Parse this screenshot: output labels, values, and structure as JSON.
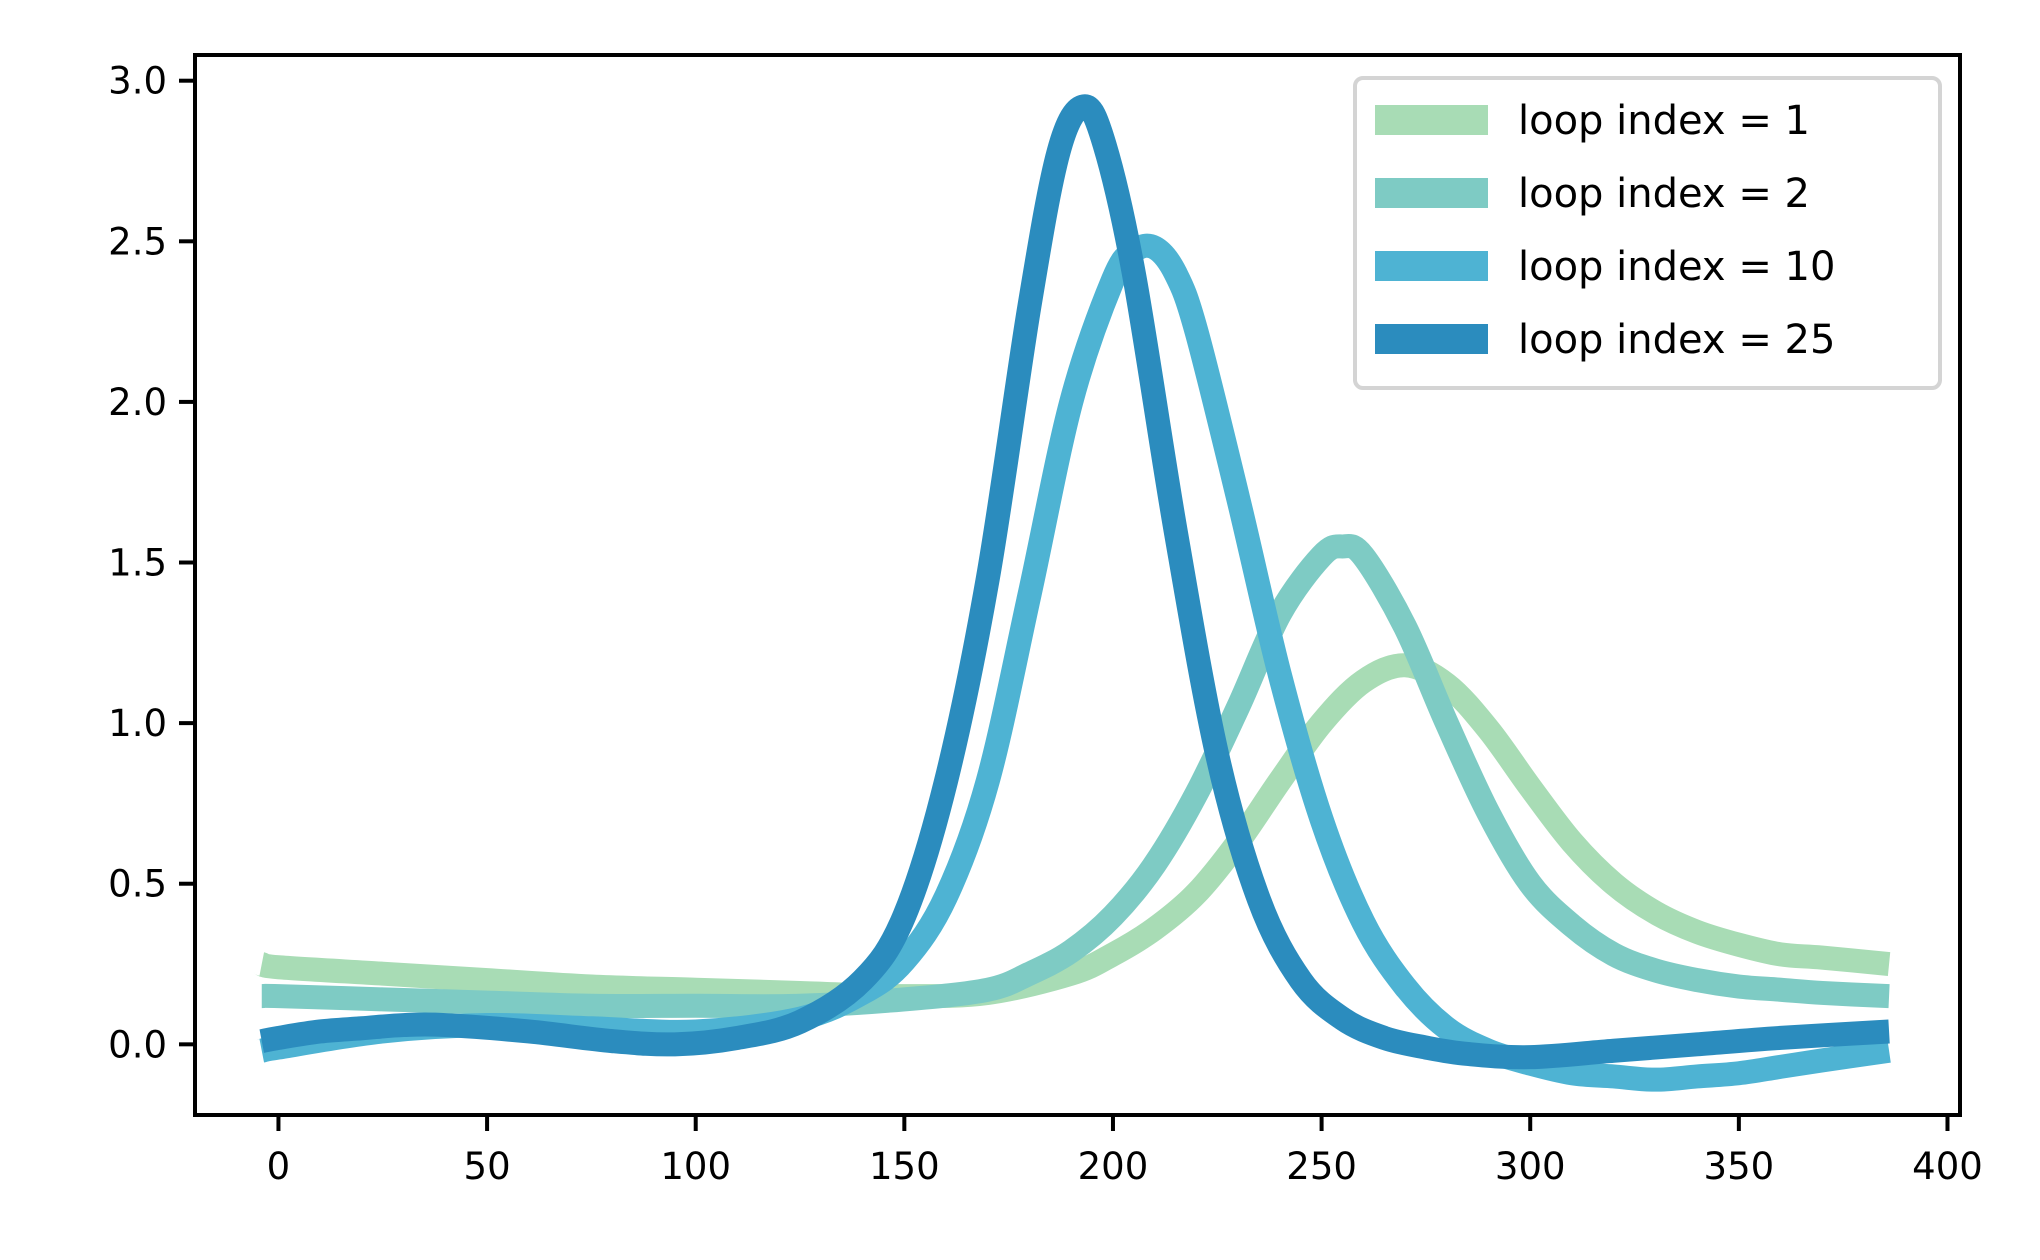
{
  "chart_data": {
    "type": "line",
    "title": "",
    "xlabel": "",
    "ylabel": "",
    "xlim": [
      -20,
      403
    ],
    "ylim": [
      -0.22,
      3.08
    ],
    "xticks": [
      0,
      50,
      100,
      150,
      200,
      250,
      300,
      350,
      400
    ],
    "xtick_labels": [
      "0",
      "50",
      "100",
      "150",
      "200",
      "250",
      "300",
      "350",
      "400"
    ],
    "yticks": [
      0.0,
      0.5,
      1.0,
      1.5,
      2.0,
      2.5,
      3.0
    ],
    "ytick_labels": [
      "0.0",
      "0.5",
      "1.0",
      "1.5",
      "2.0",
      "2.5",
      "3.0"
    ],
    "grid": false,
    "legend_position": "upper-right",
    "series": [
      {
        "name": "loop index = 1",
        "color": "#a8dcb5",
        "x": [
          -4,
          0,
          25,
          50,
          75,
          100,
          125,
          150,
          170,
          190,
          200,
          210,
          220,
          230,
          240,
          250,
          260,
          270,
          280,
          290,
          300,
          310,
          320,
          330,
          340,
          350,
          360,
          370,
          386
        ],
        "y": [
          0.25,
          0.24,
          0.22,
          0.2,
          0.18,
          0.17,
          0.16,
          0.15,
          0.16,
          0.22,
          0.28,
          0.36,
          0.47,
          0.63,
          0.82,
          1.0,
          1.13,
          1.18,
          1.12,
          0.98,
          0.8,
          0.63,
          0.5,
          0.41,
          0.35,
          0.31,
          0.28,
          0.27,
          0.25
        ]
      },
      {
        "name": "loop index = 2",
        "color": "#7ecbc4",
        "x": [
          -4,
          0,
          25,
          50,
          75,
          100,
          125,
          150,
          170,
          180,
          190,
          200,
          210,
          220,
          230,
          240,
          250,
          255,
          260,
          270,
          280,
          290,
          300,
          310,
          320,
          330,
          340,
          350,
          360,
          370,
          386
        ],
        "y": [
          0.15,
          0.15,
          0.14,
          0.13,
          0.12,
          0.12,
          0.12,
          0.14,
          0.17,
          0.22,
          0.29,
          0.4,
          0.56,
          0.78,
          1.05,
          1.34,
          1.52,
          1.55,
          1.52,
          1.3,
          1.0,
          0.72,
          0.5,
          0.37,
          0.28,
          0.23,
          0.2,
          0.18,
          0.17,
          0.16,
          0.15
        ]
      },
      {
        "name": "loop index = 10",
        "color": "#4eb3d3",
        "x": [
          -4,
          0,
          25,
          50,
          75,
          100,
          125,
          140,
          150,
          160,
          170,
          180,
          190,
          200,
          205,
          210,
          215,
          220,
          230,
          240,
          250,
          260,
          270,
          280,
          290,
          300,
          310,
          320,
          330,
          340,
          350,
          360,
          370,
          386
        ],
        "y": [
          -0.02,
          -0.01,
          0.04,
          0.06,
          0.05,
          0.04,
          0.08,
          0.16,
          0.26,
          0.46,
          0.82,
          1.4,
          2.0,
          2.38,
          2.47,
          2.48,
          2.4,
          2.22,
          1.7,
          1.15,
          0.7,
          0.38,
          0.18,
          0.05,
          -0.02,
          -0.06,
          -0.09,
          -0.1,
          -0.11,
          -0.1,
          -0.09,
          -0.07,
          -0.05,
          -0.02
        ]
      },
      {
        "name": "loop index = 25",
        "color": "#2b8cbe",
        "x": [
          -4,
          0,
          10,
          20,
          30,
          40,
          60,
          80,
          95,
          110,
          125,
          140,
          150,
          160,
          170,
          180,
          187,
          193,
          198,
          205,
          215,
          225,
          235,
          245,
          255,
          265,
          275,
          285,
          300,
          320,
          340,
          360,
          386
        ],
        "y": [
          0.01,
          0.02,
          0.04,
          0.05,
          0.06,
          0.06,
          0.04,
          0.01,
          0.0,
          0.02,
          0.07,
          0.2,
          0.4,
          0.82,
          1.45,
          2.3,
          2.78,
          2.92,
          2.8,
          2.4,
          1.6,
          0.9,
          0.45,
          0.2,
          0.08,
          0.02,
          -0.01,
          -0.03,
          -0.04,
          -0.02,
          0.0,
          0.02,
          0.04
        ]
      }
    ]
  }
}
